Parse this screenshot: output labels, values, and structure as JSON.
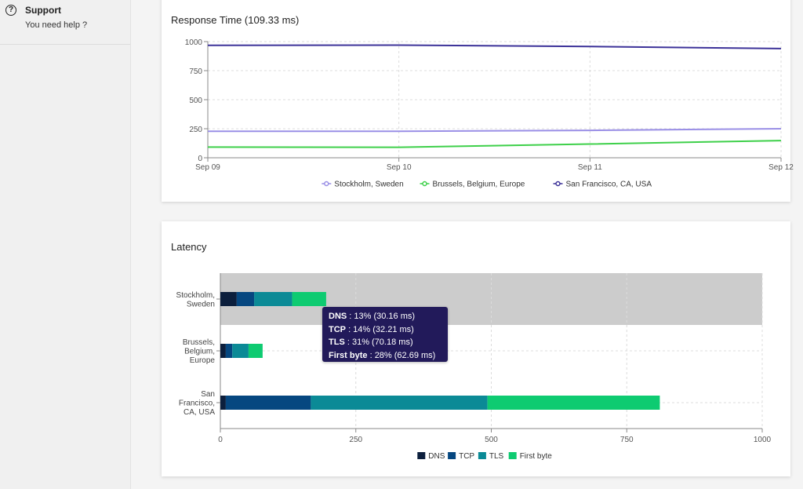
{
  "sidebar": {
    "support": {
      "title": "Support",
      "subtitle": "You need help ?",
      "icon": "question-circle-icon"
    }
  },
  "response_card": {
    "title": "Response Time (109.33 ms)",
    "legend": [
      "Stockholm, Sweden",
      "Brussels, Belgium, Europe",
      "San Francisco, CA, USA"
    ]
  },
  "latency_card": {
    "title": "Latency",
    "legend": [
      "DNS",
      "TCP",
      "TLS",
      "First byte"
    ],
    "tooltip": [
      {
        "label": "DNS",
        "value": ": 13% (30.16 ms)"
      },
      {
        "label": "TCP",
        "value": ": 14% (32.21 ms)"
      },
      {
        "label": "TLS",
        "value": ": 31% (70.18 ms)"
      },
      {
        "label": "First byte",
        "value": ": 28% (62.69 ms)"
      }
    ]
  },
  "chart_data": [
    {
      "type": "line",
      "title": "Response Time (109.33 ms)",
      "categories": [
        "Sep 09",
        "Sep 10",
        "Sep 11",
        "Sep 12"
      ],
      "ylim": [
        0,
        1000
      ],
      "yticks": [
        0,
        250,
        500,
        750,
        1000
      ],
      "grid": true,
      "legend_position": "bottom",
      "series": [
        {
          "name": "Stockholm, Sweden",
          "color": "#9a8fe6",
          "values": [
            228,
            228,
            236,
            250
          ]
        },
        {
          "name": "Brussels, Belgium, Europe",
          "color": "#3ed04a",
          "values": [
            92,
            90,
            118,
            148
          ]
        },
        {
          "name": "San Francisco, CA, USA",
          "color": "#3d3399",
          "values": [
            968,
            970,
            958,
            940
          ]
        }
      ]
    },
    {
      "type": "bar",
      "orientation": "horizontal",
      "stacked": true,
      "title": "Latency",
      "categories": [
        [
          "Stockholm,",
          "Sweden"
        ],
        [
          "Brussels,",
          "Belgium,",
          "Europe"
        ],
        [
          "San",
          "Francisco,",
          "CA, USA"
        ]
      ],
      "xlim": [
        0,
        1000
      ],
      "xticks": [
        0,
        250,
        500,
        750,
        1000
      ],
      "legend_position": "bottom",
      "highlight_category": 0,
      "series": [
        {
          "name": "DNS",
          "color": "#0c1f3d",
          "values": [
            30.16,
            10,
            10
          ]
        },
        {
          "name": "TCP",
          "color": "#064780",
          "values": [
            32.21,
            12,
            157
          ]
        },
        {
          "name": "TLS",
          "color": "#0b8a96",
          "values": [
            70.18,
            30,
            326
          ]
        },
        {
          "name": "First byte",
          "color": "#0ecb71",
          "values": [
            62.69,
            26,
            318
          ]
        }
      ]
    }
  ]
}
